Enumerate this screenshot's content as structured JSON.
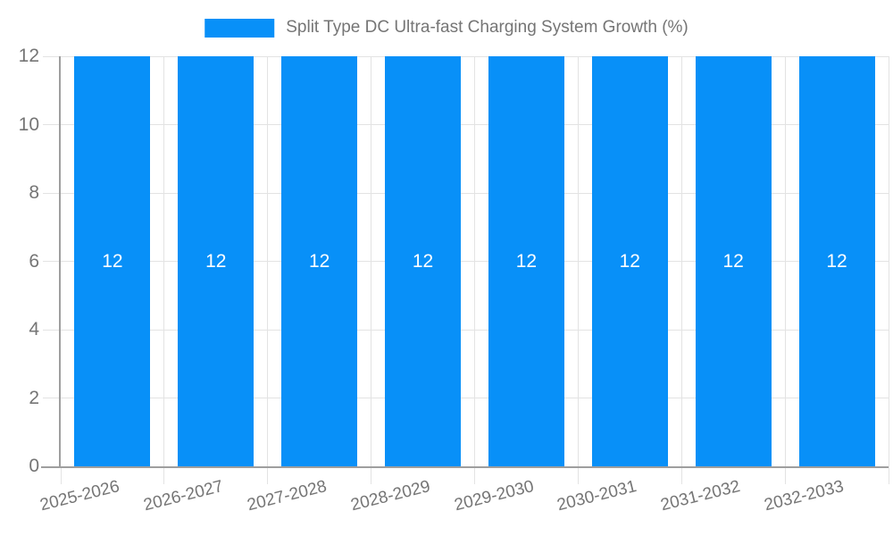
{
  "chart_data": {
    "type": "bar",
    "title": "",
    "xlabel": "",
    "ylabel": "",
    "categories": [
      "2025-2026",
      "2026-2027",
      "2027-2028",
      "2028-2029",
      "2029-2030",
      "2030-2031",
      "2031-2032",
      "2032-2033"
    ],
    "series": [
      {
        "name": "Split Type DC Ultra-fast Charging System Growth (%)",
        "values": [
          12,
          12,
          12,
          12,
          12,
          12,
          12,
          12
        ]
      }
    ],
    "bar_value_labels": [
      "12",
      "12",
      "12",
      "12",
      "12",
      "12",
      "12",
      "12"
    ],
    "ylim": [
      0,
      12
    ],
    "yticks": [
      0,
      2,
      4,
      6,
      8,
      10,
      12
    ],
    "legend_position": "top",
    "grid": true,
    "x_label_rotation_deg": -14,
    "colors": {
      "bar": "#0890F8",
      "value_label": "#FFFFFF",
      "axis_text": "#757575",
      "grid_line": "#E3E3E3",
      "axis_line": "#9E9E9E",
      "background": "#FFFFFF"
    }
  }
}
